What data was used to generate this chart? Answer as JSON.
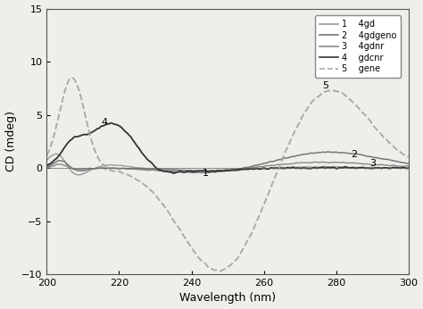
{
  "title": "",
  "xlabel": "Wavelength (nm)",
  "ylabel": "CD (mdeg)",
  "xlim": [
    200,
    300
  ],
  "ylim": [
    -10,
    15
  ],
  "yticks": [
    -10,
    -5,
    0,
    5,
    10,
    15
  ],
  "xticks": [
    200,
    220,
    240,
    260,
    280,
    300
  ],
  "line_colors": [
    "#999999",
    "#777777",
    "#888888",
    "#333333",
    "#aaaaaa"
  ],
  "line_styles": [
    "-",
    "-",
    "-",
    "-",
    "--"
  ],
  "line_widths": [
    1.0,
    1.1,
    1.0,
    1.3,
    1.4
  ],
  "background_color": "#f0eeea",
  "legend_entries": [
    [
      "1",
      "4gd"
    ],
    [
      "2",
      "4gdgeno"
    ],
    [
      "3",
      "4gdnr"
    ],
    [
      "4",
      "gdcnr"
    ],
    [
      "5",
      "gene"
    ]
  ]
}
